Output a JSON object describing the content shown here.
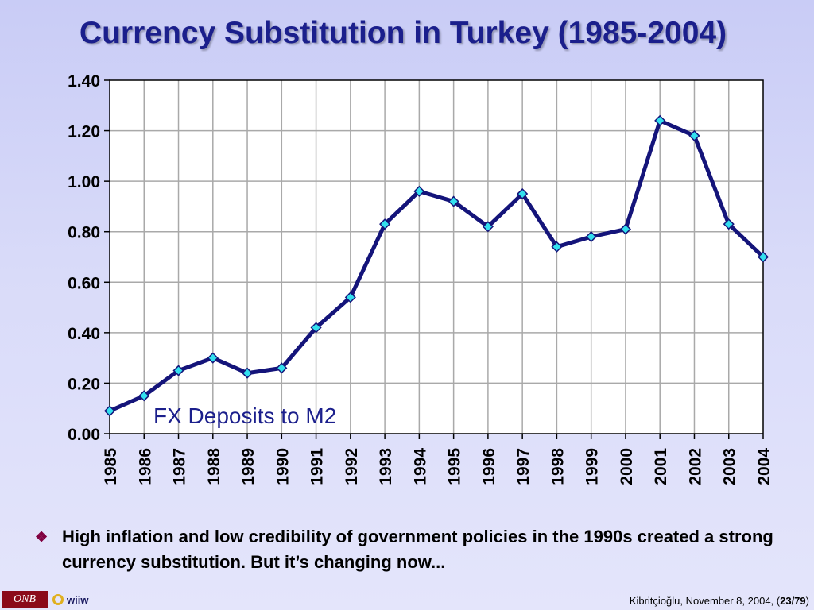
{
  "slide": {
    "title": "Currency Substitution in Turkey (1985-2004)",
    "bullet_text": "High inflation and low credibility of government policies in the 1990s created a strong currency substitution. But it’s changing now...",
    "bullet_icon": "diamond-bullet-icon",
    "footer": {
      "logo_onb": "ONB",
      "logo_wiiw": "wiiw",
      "note_prefix": "Kibritçioğlu, November 8, 2004, (",
      "page": "23/79",
      "note_suffix": ")"
    }
  },
  "chart_data": {
    "type": "line",
    "title": "",
    "xlabel": "",
    "ylabel": "",
    "categories": [
      "1985",
      "1986",
      "1987",
      "1988",
      "1989",
      "1990",
      "1991",
      "1992",
      "1993",
      "1994",
      "1995",
      "1996",
      "1997",
      "1998",
      "1999",
      "2000",
      "2001",
      "2002",
      "2003",
      "2004"
    ],
    "series": [
      {
        "name": "FX Deposits to M2",
        "values": [
          0.09,
          0.15,
          0.25,
          0.3,
          0.24,
          0.26,
          0.42,
          0.54,
          0.83,
          0.96,
          0.92,
          0.82,
          0.95,
          0.74,
          0.78,
          0.81,
          1.24,
          1.18,
          0.83,
          0.7
        ]
      }
    ],
    "ylim": [
      0,
      1.4
    ],
    "yticks": [
      "0.00",
      "0.20",
      "0.40",
      "0.60",
      "0.80",
      "1.00",
      "1.20",
      "1.40"
    ],
    "grid": true,
    "colors": {
      "line": "#14147a",
      "marker": "#33e0ee",
      "grid": "#a9a9a9",
      "plot_bg": "#ffffff"
    }
  }
}
